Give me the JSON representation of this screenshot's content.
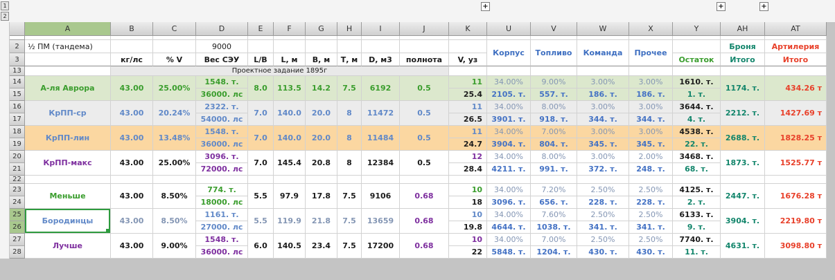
{
  "palette": {
    "green": "#3a9d2d",
    "blue": "#6189c8",
    "strong_blue": "#4472c4",
    "muted_blue": "#8496b4",
    "purple": "#7e2f9f",
    "teal": "#12856b",
    "red": "#e8402a",
    "black": "#1c1c1c",
    "header_blue": "#3e6fc1"
  },
  "selection": {
    "selected_cell": "Бородинцы (A25)",
    "header_bg": "#a9c88e",
    "border_color": "#2e9b3e"
  },
  "outline": {
    "level_buttons": [
      "1",
      "2"
    ],
    "expand_buttons": [
      "+",
      "+",
      "+"
    ]
  },
  "columns": [
    "A",
    "B",
    "C",
    "D",
    "E",
    "F",
    "G",
    "H",
    "I",
    "J",
    "K",
    "U",
    "V",
    "W",
    "X",
    "Y",
    "AH",
    "AT"
  ],
  "rows_2_3": {
    "row_numbers": [
      "2",
      "3"
    ],
    "a2": "½ ПМ (тандема)",
    "d2": "9000",
    "col_headers": {
      "B": "кг/лс",
      "C": "% V",
      "D": "Вес СЭУ",
      "E": "L/B",
      "F": "L, м",
      "G": "В, м",
      "H": "Т, м",
      "I": "D, м3",
      "J": "полнота",
      "K": "V, уз"
    },
    "alloc_headers": {
      "U": "Корпус",
      "V": "Топливо",
      "W": "Команда",
      "X": "Прочее"
    },
    "ostatok": "Остаток",
    "ah": {
      "top": "Броня",
      "bottom": "Итого"
    },
    "at": {
      "top": "Артилерия",
      "bottom": "Итого"
    }
  },
  "row13": {
    "number": "13",
    "title": "Проектное задание 1895г"
  },
  "row22": {
    "number": "22"
  },
  "ships": [
    {
      "name": "А-ля Аврора",
      "row_top": "14",
      "row_bottom": "15",
      "bg": "#dce8cd",
      "name_color": "green",
      "value_color": "green",
      "ves_color": "green",
      "poln_color": "green",
      "v1_color": "green",
      "selected": false,
      "cells": {
        "kg": "43.00",
        "pct": "25.00%",
        "ves1": "1548. т.",
        "ves2": "36000. лс",
        "lb": "8.0",
        "l": "113.5",
        "b": "14.2",
        "t": "7.5",
        "d": "6192",
        "poln": "0.5",
        "v1": "11",
        "v2": "25.4"
      },
      "alloc": {
        "korpus_pct": "34.00%",
        "korpus_t": "2105. т.",
        "toplivo_pct": "9.00%",
        "toplivo_t": "557. т.",
        "komanda_pct": "3.00%",
        "komanda_t": "186. т.",
        "prochee_pct": "3.00%",
        "prochee_t": "186. т.",
        "ostatok1": "1610. т.",
        "ostatok2": "1. т.",
        "bronya": "1174. т.",
        "artileria": "434.26 т"
      }
    },
    {
      "name": "КрПП-ср",
      "row_top": "16",
      "row_bottom": "17",
      "bg": "#ececec",
      "name_color": "blue",
      "value_color": "blue",
      "ves_color": "blue",
      "poln_color": "blue",
      "v1_color": "blue",
      "selected": false,
      "cells": {
        "kg": "43.00",
        "pct": "20.24%",
        "ves1": "2322. т.",
        "ves2": "54000. лс",
        "lb": "7.0",
        "l": "140.0",
        "b": "20.0",
        "t": "8",
        "d": "11472",
        "poln": "0.5",
        "v1": "11",
        "v2": "26.5"
      },
      "alloc": {
        "korpus_pct": "34.00%",
        "korpus_t": "3901. т.",
        "toplivo_pct": "8.00%",
        "toplivo_t": "918. т.",
        "komanda_pct": "3.00%",
        "komanda_t": "344. т.",
        "prochee_pct": "3.00%",
        "prochee_t": "344. т.",
        "ostatok1": "3644. т.",
        "ostatok2": "4. т.",
        "bronya": "2212. т.",
        "artileria": "1427.69 т"
      }
    },
    {
      "name": "КрПП-лин",
      "row_top": "18",
      "row_bottom": "19",
      "bg": "#fbd7a1",
      "name_color": "blue",
      "value_color": "blue",
      "ves_color": "blue",
      "poln_color": "blue",
      "v1_color": "blue",
      "selected": false,
      "cells": {
        "kg": "43.00",
        "pct": "13.48%",
        "ves1": "1548. т.",
        "ves2": "36000. лс",
        "lb": "7.0",
        "l": "140.0",
        "b": "20.0",
        "t": "8",
        "d": "11484",
        "poln": "0.5",
        "v1": "11",
        "v2": "24.7"
      },
      "alloc": {
        "korpus_pct": "34.00%",
        "korpus_t": "3904. т.",
        "toplivo_pct": "7.00%",
        "toplivo_t": "804. т.",
        "komanda_pct": "3.00%",
        "komanda_t": "345. т.",
        "prochee_pct": "3.00%",
        "prochee_t": "345. т.",
        "ostatok1": "4538. т.",
        "ostatok2": "22. т.",
        "bronya": "2688. т.",
        "artileria": "1828.25 т"
      }
    },
    {
      "name": "КрПП-макс",
      "row_top": "20",
      "row_bottom": "21",
      "bg": "#ffffff",
      "name_color": "purple",
      "value_color": "black",
      "ves_color": "purple",
      "poln_color": "black",
      "v1_color": "purple",
      "selected": false,
      "cells": {
        "kg": "43.00",
        "pct": "25.00%",
        "ves1": "3096. т.",
        "ves2": "72000. лс",
        "lb": "7.0",
        "l": "145.4",
        "b": "20.8",
        "t": "8",
        "d": "12384",
        "poln": "0.5",
        "v1": "12",
        "v2": "28.4"
      },
      "alloc": {
        "korpus_pct": "34.00%",
        "korpus_t": "4211. т.",
        "toplivo_pct": "8.00%",
        "toplivo_t": "991. т.",
        "komanda_pct": "3.00%",
        "komanda_t": "372. т.",
        "prochee_pct": "2.00%",
        "prochee_t": "248. т.",
        "ostatok1": "3468. т.",
        "ostatok2": "68. т.",
        "bronya": "1873. т.",
        "artileria": "1525.77 т"
      }
    },
    {
      "name": "Меньше",
      "row_top": "23",
      "row_bottom": "24",
      "bg": "#ffffff",
      "name_color": "green",
      "value_color": "black",
      "ves_color": "green",
      "poln_color": "purple",
      "v1_color": "green",
      "selected": false,
      "cells": {
        "kg": "43.00",
        "pct": "8.50%",
        "ves1": "774. т.",
        "ves2": "18000. лс",
        "lb": "5.5",
        "l": "97.9",
        "b": "17.8",
        "t": "7.5",
        "d": "9106",
        "poln": "0.68",
        "v1": "10",
        "v2": "18"
      },
      "alloc": {
        "korpus_pct": "34.00%",
        "korpus_t": "3096. т.",
        "toplivo_pct": "7.20%",
        "toplivo_t": "656. т.",
        "komanda_pct": "2.50%",
        "komanda_t": "228. т.",
        "prochee_pct": "2.50%",
        "prochee_t": "228. т.",
        "ostatok1": "4125. т.",
        "ostatok2": "2. т.",
        "bronya": "2447. т.",
        "artileria": "1676.28 т"
      }
    },
    {
      "name": "Бородинцы",
      "row_top": "25",
      "row_bottom": "26",
      "bg": "#ffffff",
      "name_color": "blue",
      "value_color": "muted_blue",
      "ves_color": "blue",
      "poln_color": "purple",
      "v1_color": "blue",
      "selected": true,
      "cells": {
        "kg": "43.00",
        "pct": "8.50%",
        "ves1": "1161. т.",
        "ves2": "27000. лс",
        "lb": "5.5",
        "l": "119.9",
        "b": "21.8",
        "t": "7.5",
        "d": "13659",
        "poln": "0.68",
        "v1": "10",
        "v2": "19.8"
      },
      "alloc": {
        "korpus_pct": "34.00%",
        "korpus_t": "4644. т.",
        "toplivo_pct": "7.60%",
        "toplivo_t": "1038. т.",
        "komanda_pct": "2.50%",
        "komanda_t": "341. т.",
        "prochee_pct": "2.50%",
        "prochee_t": "341. т.",
        "ostatok1": "6133. т.",
        "ostatok2": "9. т.",
        "bronya": "3904. т.",
        "artileria": "2219.80 т"
      }
    },
    {
      "name": "Лучше",
      "row_top": "27",
      "row_bottom": "28",
      "bg": "#ffffff",
      "name_color": "purple",
      "value_color": "black",
      "ves_color": "purple",
      "poln_color": "purple",
      "v1_color": "purple",
      "selected": false,
      "cells": {
        "kg": "43.00",
        "pct": "9.00%",
        "ves1": "1548. т.",
        "ves2": "36000. лс",
        "lb": "6.0",
        "l": "140.5",
        "b": "23.4",
        "t": "7.5",
        "d": "17200",
        "poln": "0.68",
        "v1": "10",
        "v2": "22"
      },
      "alloc": {
        "korpus_pct": "34.00%",
        "korpus_t": "5848. т.",
        "toplivo_pct": "7.00%",
        "toplivo_t": "1204. т.",
        "komanda_pct": "2.50%",
        "komanda_t": "430. т.",
        "prochee_pct": "2.50%",
        "prochee_t": "430. т.",
        "ostatok1": "7740. т.",
        "ostatok2": "11. т.",
        "bronya": "4631. т.",
        "artileria": "3098.80 т"
      }
    }
  ]
}
